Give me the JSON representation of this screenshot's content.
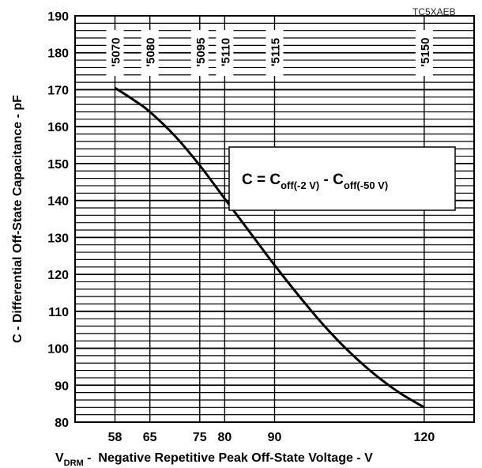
{
  "chart_data": {
    "type": "line",
    "figure_code": "TC5XAEB",
    "title": "",
    "ylabel": "C - Differential Off-State Capacitance - pF",
    "xlabel": {
      "main": "V",
      "subscript": "DRM",
      "rest": " -  Negative Repetitive Peak Off-State Voltage - V"
    },
    "xlim": [
      50,
      130
    ],
    "ylim": [
      80,
      190
    ],
    "x_ticks": [
      58,
      65,
      75,
      80,
      90,
      120
    ],
    "y_ticks": [
      80,
      90,
      100,
      110,
      120,
      130,
      140,
      150,
      160,
      170,
      180,
      190
    ],
    "minor_y_step": 2,
    "grid": true,
    "series": [
      {
        "x": [
          58,
          62,
          65,
          70,
          75,
          80,
          85,
          90,
          95,
          100,
          105,
          110,
          115,
          120
        ],
        "y": [
          170.5,
          167,
          164,
          157.5,
          149.5,
          140.5,
          131.5,
          122.5,
          114,
          106,
          99,
          93,
          88,
          84
        ]
      }
    ],
    "device_markers": [
      {
        "label": "'5070",
        "x": 58
      },
      {
        "label": "'5080",
        "x": 65
      },
      {
        "label": "'5095",
        "x": 75
      },
      {
        "label": "'5110",
        "x": 80
      },
      {
        "label": "'5115",
        "x": 90
      },
      {
        "label": "'5150",
        "x": 120
      }
    ],
    "annotation": {
      "lhs": "C = C",
      "sub1": "off(-2 V)",
      "mid": " - C",
      "sub2": "off(-50 V)"
    }
  }
}
